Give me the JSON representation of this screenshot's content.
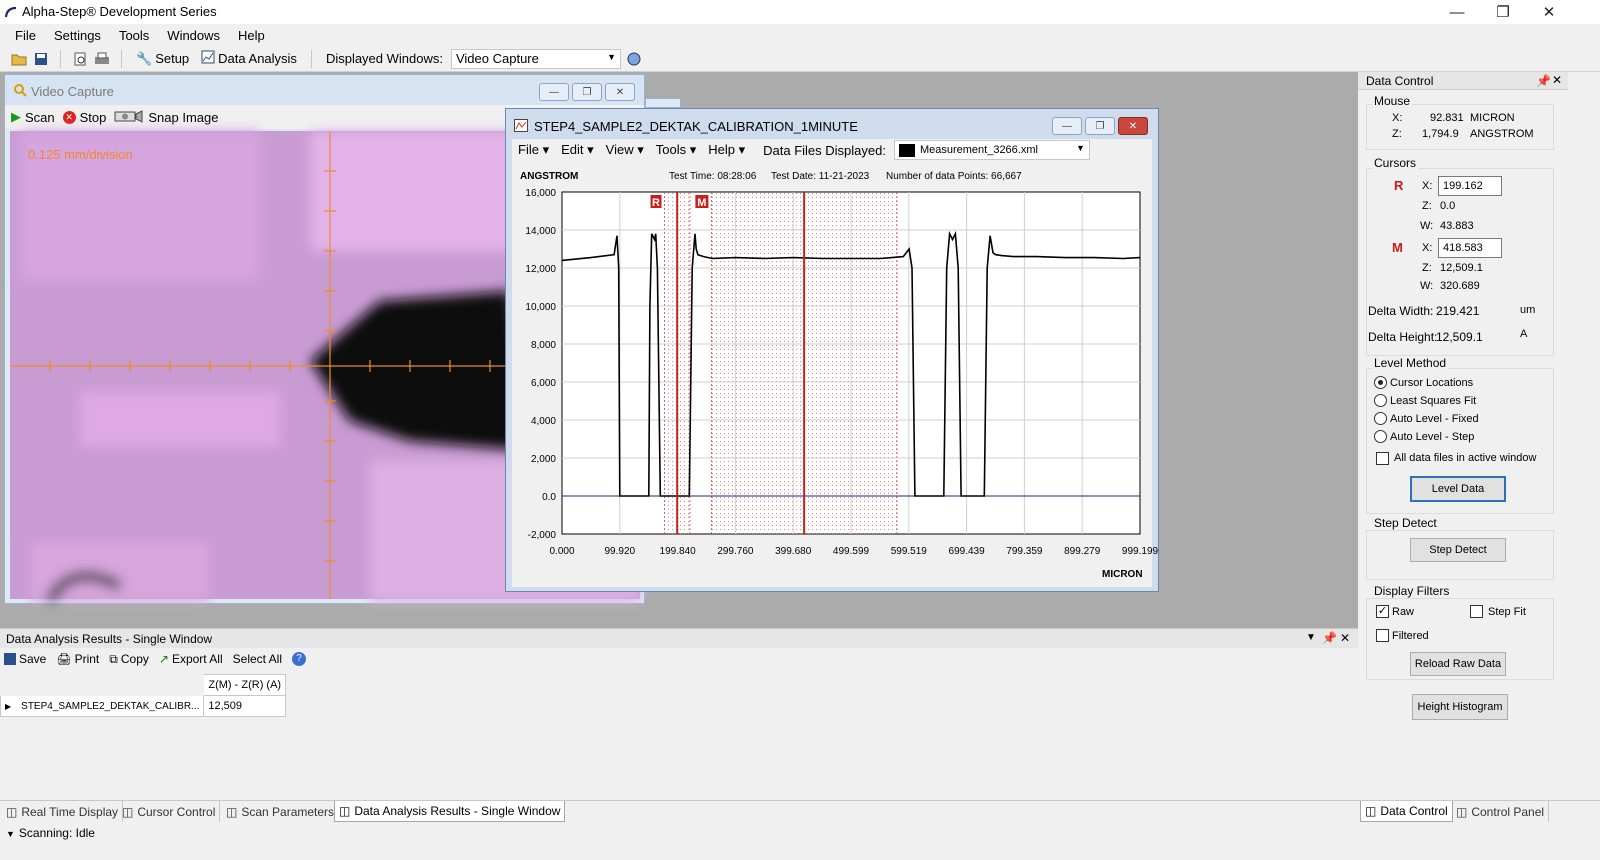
{
  "app": {
    "title": "Alpha-Step® Development Series"
  },
  "menu": [
    "File",
    "Settings",
    "Tools",
    "Windows",
    "Help"
  ],
  "toolbar": {
    "setup": "Setup",
    "data_analysis": "Data Analysis",
    "displayed_windows_label": "Displayed Windows:",
    "displayed_windows_value": "Video Capture"
  },
  "video": {
    "title": "Video Capture",
    "scan": "Scan",
    "stop": "Stop",
    "snap": "Snap Image",
    "overlay": "0.125 mm/division"
  },
  "measurement": {
    "title": "STEP4_SAMPLE2_DEKTAK_CALIBRATION_1MINUTE",
    "menu": [
      "File",
      "Edit",
      "View",
      "Tools",
      "Help"
    ],
    "files_label": "Data Files Displayed:",
    "file": "Measurement_3266.xml",
    "unit_y": "ANGSTROM",
    "unit_x": "MICRON",
    "test_time": "Test Time: 08:28:06",
    "test_date": "Test Date: 11-21-2023",
    "points": "Number of data Points: 66,667"
  },
  "chart_data": {
    "type": "line",
    "xlabel": "MICRON",
    "ylabel": "ANGSTROM",
    "xlim": [
      0,
      999.199
    ],
    "ylim": [
      -2000,
      16000
    ],
    "x_ticks": [
      "0.000",
      "99.920",
      "199.840",
      "299.760",
      "399.680",
      "499.599",
      "599.519",
      "699.439",
      "799.359",
      "899.279",
      "999.199"
    ],
    "y_ticks": [
      "16,000",
      "14,000",
      "12,000",
      "10,000",
      "8,000",
      "6,000",
      "4,000",
      "2,000",
      "0.0",
      "-2,000"
    ],
    "grid": true,
    "cursors": {
      "R": {
        "x": 199.162,
        "width": 43.883
      },
      "M": {
        "x": 418.583,
        "width": 320.689
      }
    },
    "series": [
      {
        "x": [
          0,
          50,
          90,
          95,
          98,
          100,
          150,
          152,
          155,
          160,
          162,
          165,
          170,
          180,
          190,
          220,
          225,
          230,
          232,
          235,
          245,
          260,
          300,
          350,
          400,
          450,
          500,
          550,
          590,
          600,
          605,
          610,
          615,
          660,
          665,
          670,
          675,
          680,
          685,
          690,
          730,
          735,
          740,
          745,
          750,
          760,
          780,
          820,
          870,
          920,
          970,
          999
        ],
        "y": [
          12400,
          12550,
          12700,
          13700,
          12000,
          0,
          0,
          10000,
          13800,
          13500,
          13800,
          12000,
          0,
          0,
          0,
          0,
          12000,
          13800,
          13000,
          12700,
          12600,
          12500,
          12550,
          12500,
          12550,
          12500,
          12500,
          12500,
          12600,
          13000,
          12000,
          0,
          0,
          0,
          12000,
          13800,
          13500,
          13800,
          12000,
          0,
          0,
          12000,
          13700,
          12800,
          12700,
          12650,
          12600,
          12600,
          12550,
          12550,
          12500,
          12550
        ]
      }
    ]
  },
  "data_control": {
    "title": "Data Control",
    "mouse_title": "Mouse",
    "mouse_x": "92.831",
    "mouse_x_unit": "MICRON",
    "mouse_z": "1,794.9",
    "mouse_z_unit": "ANGSTROM",
    "cursors_title": "Cursors",
    "r_label": "R",
    "r_x": "199.162",
    "r_z": "0.0",
    "r_w": "43.883",
    "m_label": "M",
    "m_x": "418.583",
    "m_z": "12,509.1",
    "m_w": "320.689",
    "delta_width_label": "Delta Width:",
    "delta_width": "219.421",
    "delta_width_unit": "um",
    "delta_height_label": "Delta Height:",
    "delta_height": "12,509.1",
    "delta_height_unit": "A",
    "level_title": "Level Method",
    "level_options": [
      "Cursor Locations",
      "Least Squares Fit",
      "Auto Level - Fixed",
      "Auto Level - Step"
    ],
    "all_files": "All data files in active window",
    "level_button": "Level Data",
    "step_title": "Step Detect",
    "step_button": "Step Detect",
    "filters_title": "Display Filters",
    "raw": "Raw",
    "step_fit": "Step Fit",
    "filtered": "Filtered",
    "reload": "Reload Raw Data",
    "histogram": "Height Histogram"
  },
  "results": {
    "title": "Data Analysis Results - Single Window",
    "save": "Save",
    "print": "Print",
    "copy": "Copy",
    "export": "Export All",
    "select": "Select All",
    "col_header": "Z(M) - Z(R) (A)",
    "row_name": "STEP4_SAMPLE2_DEKTAK_CALIBR...",
    "row_value": "12,509"
  },
  "tabs": [
    "Real Time Display",
    "Cursor Control",
    "Scan Parameters",
    "Data Analysis Results - Single Window"
  ],
  "right_tabs": [
    "Data Control",
    "Control Panel"
  ],
  "status": "Scanning: Idle"
}
